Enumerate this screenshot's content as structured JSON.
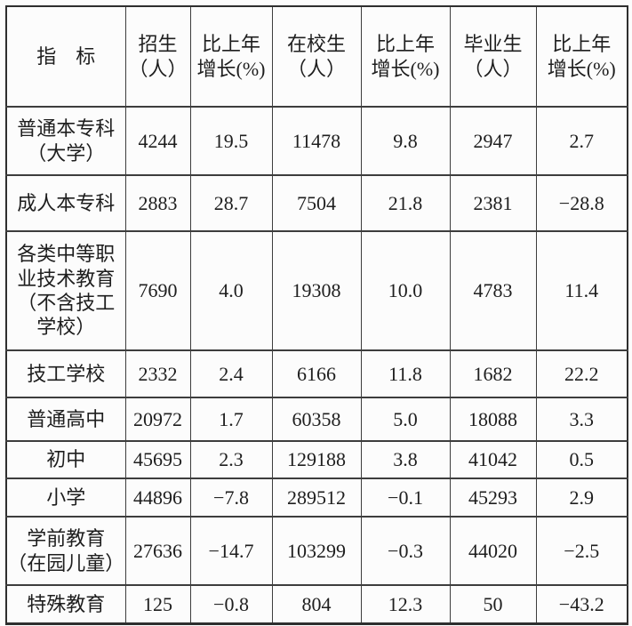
{
  "table": {
    "header": {
      "indicator_label": "指　标",
      "columns": [
        "招生\n（人）",
        "比上年\n增长(%)",
        "在校生\n（人）",
        "比上年\n增长(%)",
        "毕业生\n（人）",
        "比上年\n增长(%)"
      ]
    },
    "rows": [
      {
        "label": "普通本专科\n（大学）",
        "values": [
          "4244",
          "19.5",
          "11478",
          "9.8",
          "2947",
          "2.7"
        ]
      },
      {
        "label": "成人本专科",
        "values": [
          "2883",
          "28.7",
          "7504",
          "21.8",
          "2381",
          "−28.8"
        ]
      },
      {
        "label": "各类中等职\n业技术教育\n（不含技工\n学校）",
        "values": [
          "7690",
          "4.0",
          "19308",
          "10.0",
          "4783",
          "11.4"
        ]
      },
      {
        "label": "技工学校",
        "values": [
          "2332",
          "2.4",
          "6166",
          "11.8",
          "1682",
          "22.2"
        ]
      },
      {
        "label": "普通高中",
        "values": [
          "20972",
          "1.7",
          "60358",
          "5.0",
          "18088",
          "3.3"
        ]
      },
      {
        "label": "初中",
        "values": [
          "45695",
          "2.3",
          "129188",
          "3.8",
          "41042",
          "0.5"
        ]
      },
      {
        "label": "小学",
        "values": [
          "44896",
          "−7.8",
          "289512",
          "−0.1",
          "45293",
          "2.9"
        ]
      },
      {
        "label": "学前教育\n（在园儿童）",
        "values": [
          "27636",
          "−14.7",
          "103299",
          "−0.3",
          "44020",
          "−2.5"
        ]
      },
      {
        "label": "特殊教育",
        "values": [
          "125",
          "−0.8",
          "804",
          "12.3",
          "50",
          "−43.2"
        ]
      }
    ],
    "colors": {
      "border": "#3d3d3d",
      "outer_border": "#2e2e2e",
      "text": "#1e1e1e",
      "background": "#fcfcfc"
    }
  }
}
